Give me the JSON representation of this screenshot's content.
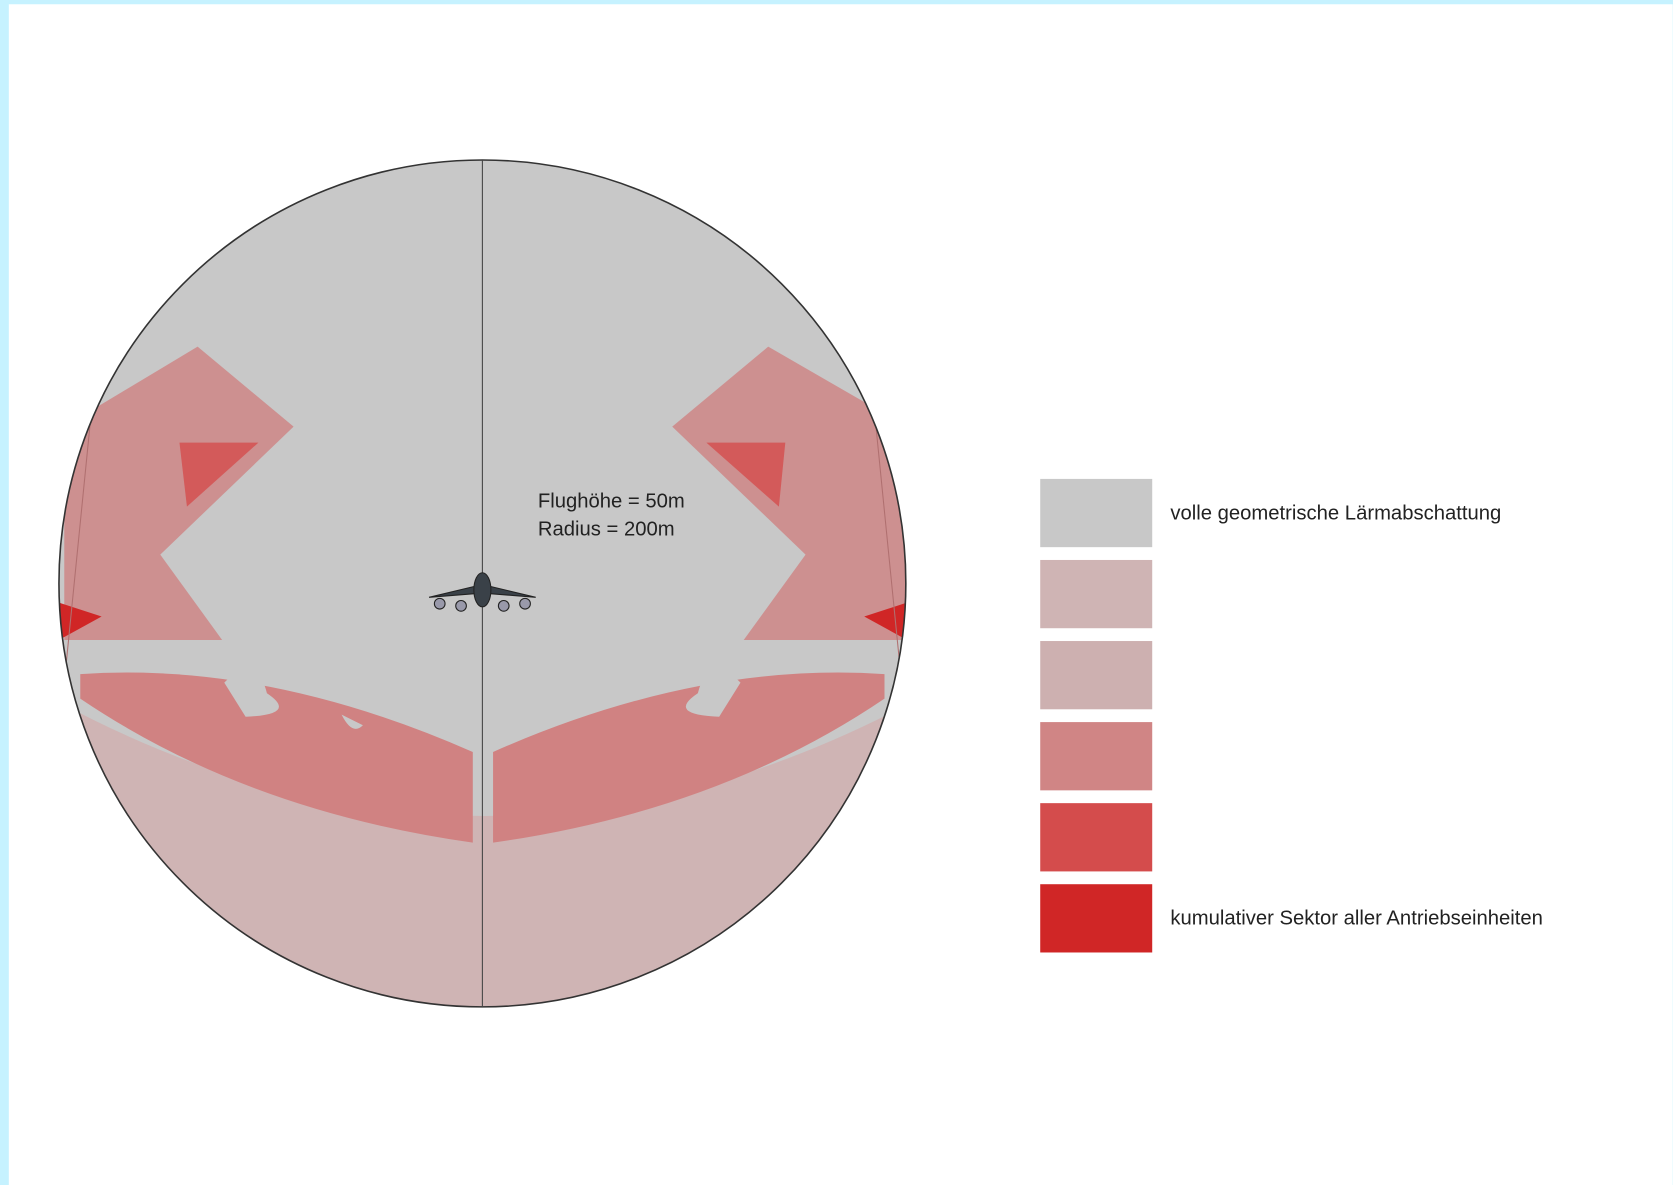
{
  "annotation": {
    "lines": [
      "Flughöhe = 50m",
      "Radius = 200m"
    ]
  },
  "legend": {
    "top_label": "volle geometrische Lärmabschattung",
    "bottom_label": "kumulativer Sektor aller Antriebseinheiten"
  }
}
